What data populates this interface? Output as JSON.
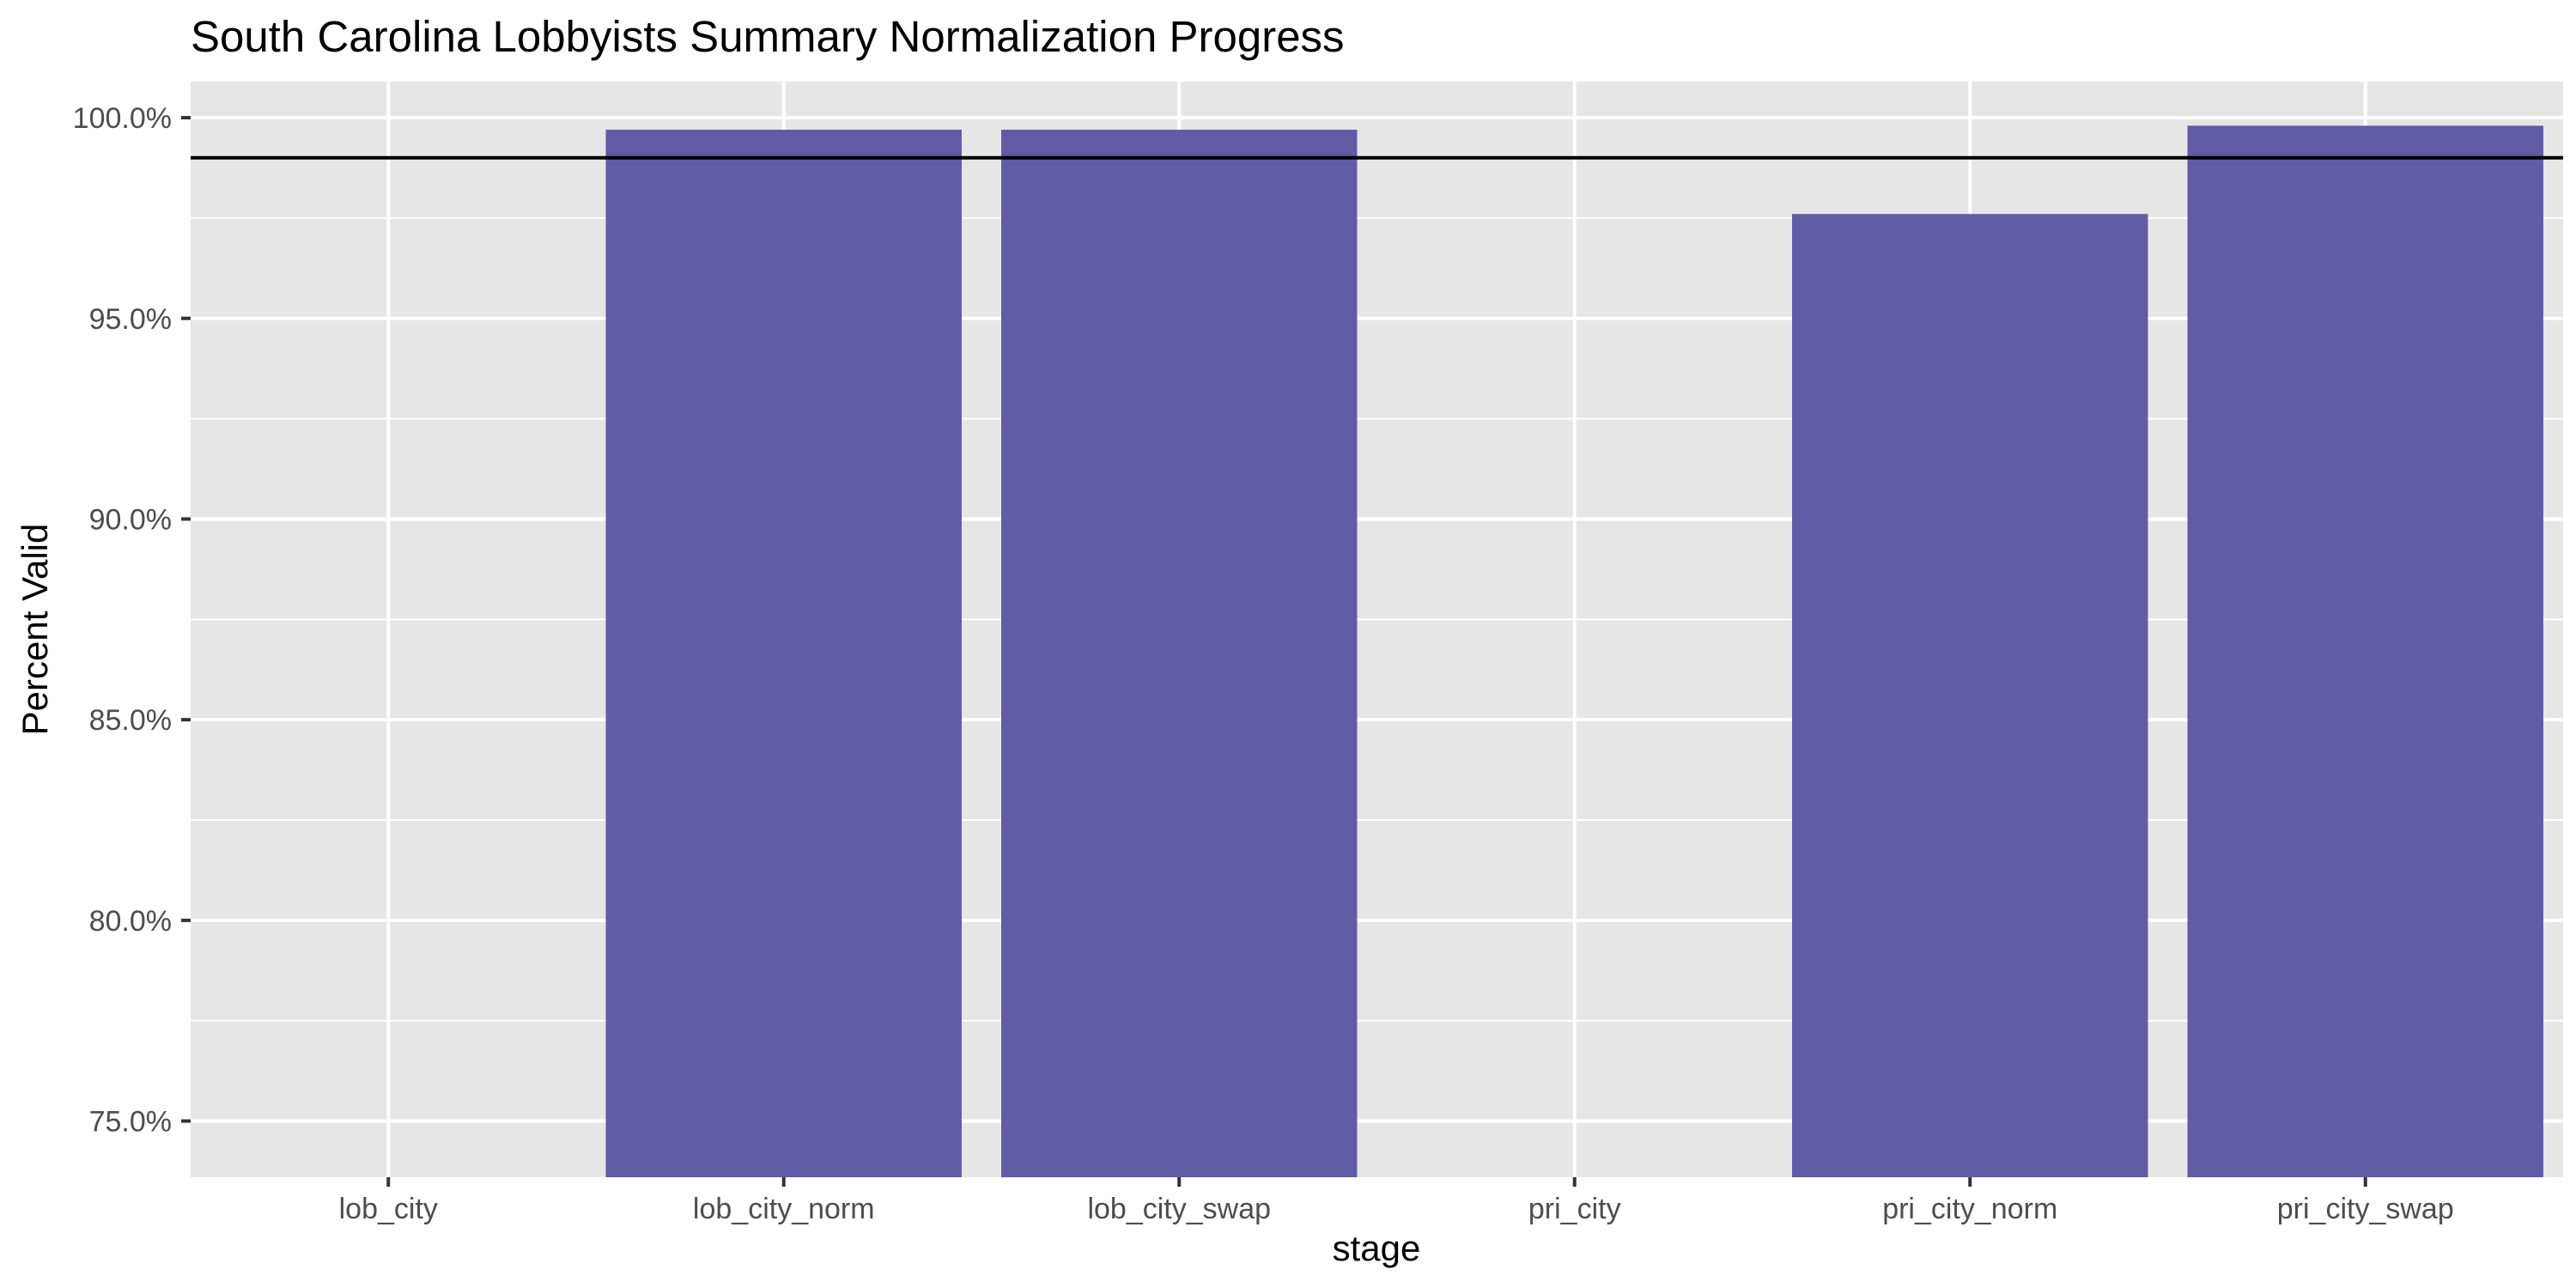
{
  "chart_data": {
    "type": "bar",
    "title": "South Carolina Lobbyists Summary Normalization Progress",
    "xlabel": "stage",
    "ylabel": "Percent Valid",
    "categories": [
      "lob_city",
      "lob_city_norm",
      "lob_city_swap",
      "pri_city",
      "pri_city_norm",
      "pri_city_swap"
    ],
    "values": [
      null,
      99.7,
      99.7,
      null,
      97.6,
      99.8
    ],
    "ylim": [
      73.6,
      100.9
    ],
    "yticks": [
      75.0,
      80.0,
      85.0,
      90.0,
      95.0,
      100.0
    ],
    "ytick_labels": [
      "75.0%",
      "80.0%",
      "85.0%",
      "90.0%",
      "95.0%",
      "100.0%"
    ],
    "reference_line": 99.0,
    "grid": true,
    "colors": {
      "bar": "#615AA4",
      "panel": "#E6E6E6",
      "grid": "#FFFFFF",
      "reference_line": "#000000"
    }
  }
}
